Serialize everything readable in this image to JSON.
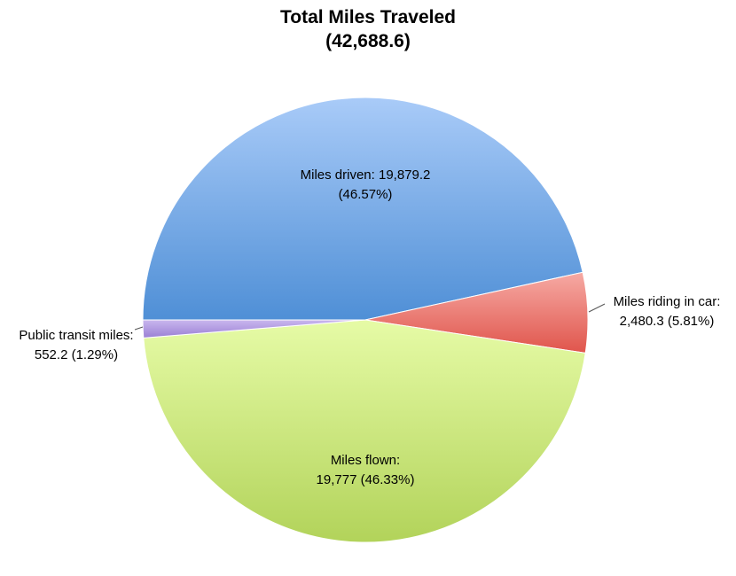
{
  "chart_data": {
    "type": "pie",
    "title": "Total Miles Traveled",
    "subtitle": "(42,688.6)",
    "slices": [
      {
        "label_line1": "Miles driven: 19,879.2",
        "label_line2": "(46.57%)",
        "value": 19879.2,
        "percent": 46.57,
        "color": "#6ea3e0"
      },
      {
        "label_line1": "Miles riding in car:",
        "label_line2": "2,480.3 (5.81%)",
        "value": 2480.3,
        "percent": 5.81,
        "color": "#ec7f79"
      },
      {
        "label_line1": "Miles flown:",
        "label_line2": "19,777 (46.33%)",
        "value": 19777,
        "percent": 46.33,
        "color": "#cfe68a"
      },
      {
        "label_line1": "Public transit miles:",
        "label_line2": "552.2 (1.29%)",
        "value": 552.2,
        "percent": 1.29,
        "color": "#b69ee0"
      }
    ]
  }
}
